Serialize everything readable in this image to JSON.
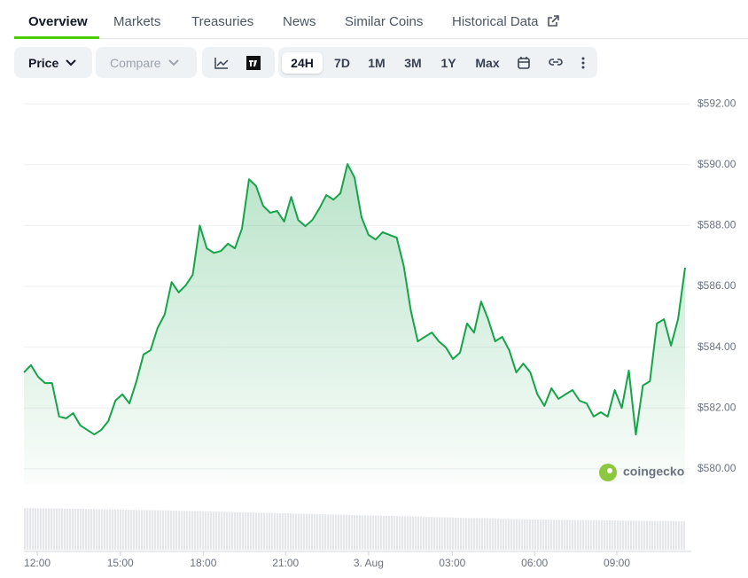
{
  "tabs": [
    "Overview",
    "Markets",
    "Treasuries",
    "News",
    "Similar Coins",
    "Historical Data"
  ],
  "toolbar": {
    "price": "Price",
    "compare": "Compare",
    "ranges": [
      "24H",
      "7D",
      "1M",
      "3M",
      "1Y",
      "Max"
    ]
  },
  "logo": "coingecko",
  "chart_data": {
    "type": "line",
    "color": "#16a34a",
    "grid": true,
    "values": [
      583.17,
      583.41,
      583.03,
      582.82,
      582.82,
      581.72,
      581.66,
      581.83,
      581.43,
      581.28,
      581.13,
      581.28,
      581.57,
      582.24,
      582.45,
      582.15,
      582.88,
      583.76,
      583.9,
      584.63,
      585.07,
      586.14,
      585.8,
      586.03,
      586.38,
      588,
      587.25,
      587.1,
      587.16,
      587.4,
      587.25,
      587.9,
      589.52,
      589.3,
      588.65,
      588.42,
      588.48,
      588.13,
      588.94,
      588.18,
      587.98,
      588.18,
      588.56,
      589,
      588.85,
      589.06,
      590.02,
      589.58,
      588.27,
      587.69,
      587.54,
      587.78,
      587.69,
      587.6,
      586.67,
      585.21,
      584.19,
      584.34,
      584.48,
      584.19,
      583.99,
      583.61,
      583.82,
      584.78,
      584.48,
      585.5,
      584.92,
      584.19,
      584.34,
      583.9,
      583.17,
      583.46,
      583.17,
      582.45,
      582.07,
      582.65,
      582.3,
      582.45,
      582.59,
      582.24,
      582.15,
      581.72,
      581.86,
      581.72,
      582.59,
      582,
      583.23,
      581.13,
      582.74,
      582.88,
      584.78,
      584.92,
      584.05,
      584.92,
      586.61
    ],
    "xlim": [
      0,
      94
    ],
    "xticks": [
      {
        "value": 1.9,
        "label": "12:00"
      },
      {
        "value": 13.7,
        "label": "15:00"
      },
      {
        "value": 25.5,
        "label": "18:00"
      },
      {
        "value": 37.2,
        "label": "21:00"
      },
      {
        "value": 49,
        "label": "3. Aug"
      },
      {
        "value": 60.9,
        "label": "03:00"
      },
      {
        "value": 72.6,
        "label": "06:00"
      },
      {
        "value": 84.3,
        "label": "09:00"
      }
    ],
    "ylim": [
      579.5,
      592.5
    ],
    "yticks": [
      {
        "value": 580,
        "label": "$580.00"
      },
      {
        "value": 582,
        "label": "$582.00"
      },
      {
        "value": 584,
        "label": "$584.00"
      },
      {
        "value": 586,
        "label": "$586.00"
      },
      {
        "value": 588,
        "label": "$588.00"
      },
      {
        "value": 590,
        "label": "$590.00"
      },
      {
        "value": 592,
        "label": "$592.00"
      }
    ]
  }
}
